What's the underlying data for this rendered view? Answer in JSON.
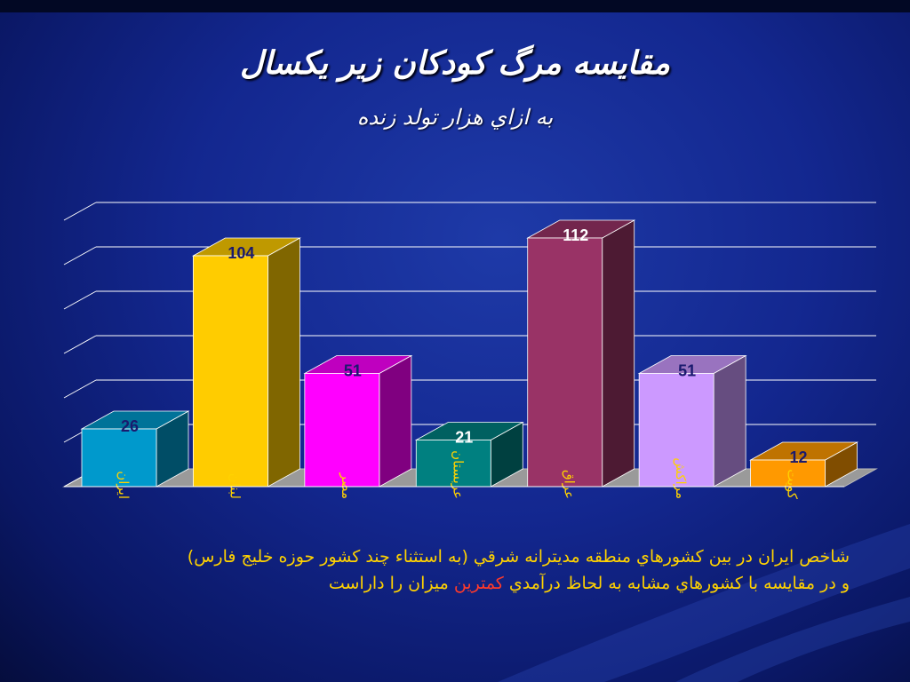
{
  "title": "مقايسه مرگ کودکان زير يکسال",
  "subtitle": "به ازاي هزار تولد زنده",
  "chart_data": {
    "type": "bar",
    "title": "مقايسه مرگ کودکان زير يکسال",
    "subtitle": "به ازاي هزار تولد زنده",
    "categories": [
      "ايران",
      "لبنان",
      "مصر",
      "عربستان",
      "عراق",
      "مراکش",
      "کويت"
    ],
    "values": [
      26,
      104,
      51,
      21,
      112,
      51,
      12
    ],
    "colors": [
      "#0099cc",
      "#ffcc00",
      "#ff00ff",
      "#008080",
      "#993366",
      "#cc99ff",
      "#ff9900"
    ],
    "ylim": [
      0,
      120
    ],
    "grid": true,
    "legend": "none",
    "style": "3d"
  },
  "note": {
    "line1": "شاخص ايران در بين کشورهاي منطقه مديترانه شرقي (به استثناء چند کشور حوزه خليج فارس)",
    "line2_before": "و در مقايسه با کشورهاي مشابه به لحاظ درآمدي",
    "line2_highlight": "کمترين",
    "line2_after": "ميزان را داراست"
  }
}
